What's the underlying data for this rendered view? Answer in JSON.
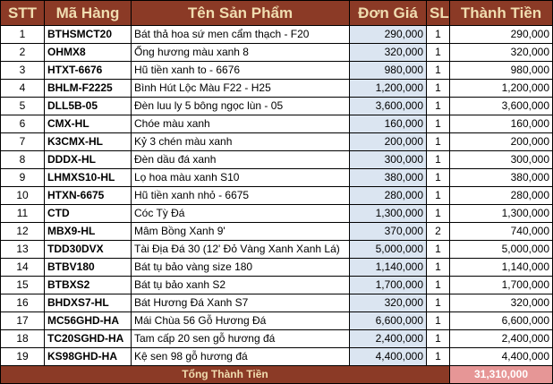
{
  "headers": {
    "stt": "STT",
    "code": "Mã Hàng",
    "name": "Tên Sản Phẩm",
    "price": "Đơn Giá",
    "qty": "SL",
    "total": "Thành Tiền"
  },
  "rows": [
    {
      "stt": "1",
      "code": "BTHSMCT20",
      "name": "Bát thả hoa sứ men cẩm thạch - F20",
      "price": "290,000",
      "qty": "1",
      "total": "290,000"
    },
    {
      "stt": "2",
      "code": "OHMX8",
      "name": "Ống hương màu xanh 8",
      "price": "320,000",
      "qty": "1",
      "total": "320,000"
    },
    {
      "stt": "3",
      "code": "HTXT-6676",
      "name": "Hũ tiền xanh to - 6676",
      "price": "980,000",
      "qty": "1",
      "total": "980,000"
    },
    {
      "stt": "4",
      "code": "BHLM-F2225",
      "name": "Bình Hút Lộc Màu F22 - H25",
      "price": "1,200,000",
      "qty": "1",
      "total": "1,200,000"
    },
    {
      "stt": "5",
      "code": "DLL5B-05",
      "name": "Đèn luu ly 5 bông ngọc lùn - 05",
      "price": "3,600,000",
      "qty": "1",
      "total": "3,600,000"
    },
    {
      "stt": "6",
      "code": "CMX-HL",
      "name": "Chóe màu xanh",
      "price": "160,000",
      "qty": "1",
      "total": "160,000"
    },
    {
      "stt": "7",
      "code": "K3CMX-HL",
      "name": "Kỷ 3 chén màu xanh",
      "price": "200,000",
      "qty": "1",
      "total": "200,000"
    },
    {
      "stt": "8",
      "code": "DDDX-HL",
      "name": "Đèn dầu đá xanh",
      "price": "300,000",
      "qty": "1",
      "total": "300,000"
    },
    {
      "stt": "9",
      "code": "LHMXS10-HL",
      "name": "Lọ hoa màu xanh S10",
      "price": "380,000",
      "qty": "1",
      "total": "380,000"
    },
    {
      "stt": "10",
      "code": "HTXN-6675",
      "name": "Hũ tiền xanh nhỏ - 6675",
      "price": "280,000",
      "qty": "1",
      "total": "280,000"
    },
    {
      "stt": "11",
      "code": "CTD",
      "name": "Cóc Tỳ Đá",
      "price": "1,300,000",
      "qty": "1",
      "total": "1,300,000"
    },
    {
      "stt": "12",
      "code": "MBX9-HL",
      "name": "Mâm Bồng Xanh 9'",
      "price": "370,000",
      "qty": "2",
      "total": "740,000"
    },
    {
      "stt": "13",
      "code": "TDD30DVX",
      "name": "Tài Địa Đá 30 (12' Đỏ Vàng Xanh Xanh Lá)",
      "price": "5,000,000",
      "qty": "1",
      "total": "5,000,000"
    },
    {
      "stt": "14",
      "code": "BTBV180",
      "name": "Bát tụ bảo vàng size 180",
      "price": "1,140,000",
      "qty": "1",
      "total": "1,140,000"
    },
    {
      "stt": "15",
      "code": "BTBXS2",
      "name": "Bát tụ bảo xanh S2",
      "price": "1,700,000",
      "qty": "1",
      "total": "1,700,000"
    },
    {
      "stt": "16",
      "code": "BHDXS7-HL",
      "name": "Bát Hương Đá Xanh S7",
      "price": "320,000",
      "qty": "1",
      "total": "320,000"
    },
    {
      "stt": "17",
      "code": "MC56GHD-HA",
      "name": "Mái Chùa 56 Gỗ Hương Đá",
      "price": "6,600,000",
      "qty": "1",
      "total": "6,600,000"
    },
    {
      "stt": "18",
      "code": "TC20SGHD-HA",
      "name": "Tam cấp 20 sen gỗ hương đá",
      "price": "2,400,000",
      "qty": "1",
      "total": "2,400,000"
    },
    {
      "stt": "19",
      "code": "KS98GHD-HA",
      "name": "Kệ sen 98 gỗ hương đá",
      "price": "4,400,000",
      "qty": "1",
      "total": "4,400,000"
    }
  ],
  "footer": {
    "label": "Tổng Thành Tiền",
    "value": "31,310,000"
  },
  "colors": {
    "header_bg": "#8b3a26",
    "header_text": "#f0ddb0",
    "price_bg": "#dbe5f1",
    "total_bg": "#e69696"
  }
}
